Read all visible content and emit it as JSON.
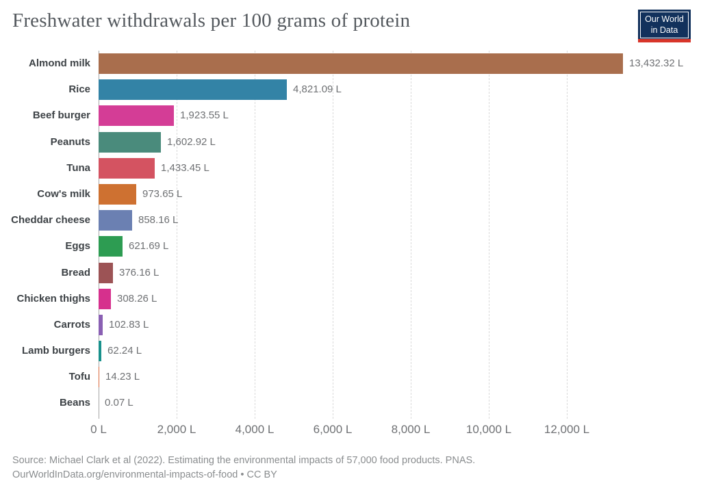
{
  "header": {
    "title": "Freshwater withdrawals per 100 grams of protein",
    "logo": {
      "line1": "Our World",
      "line2": "in Data",
      "bg_color": "#12315c",
      "accent_color": "#d8352a"
    }
  },
  "chart_data": {
    "type": "bar",
    "orientation": "horizontal",
    "title": "Freshwater withdrawals per 100 grams of protein",
    "unit": "L",
    "categories": [
      "Almond milk",
      "Rice",
      "Beef burger",
      "Peanuts",
      "Tuna",
      "Cow's milk",
      "Cheddar cheese",
      "Eggs",
      "Bread",
      "Chicken thighs",
      "Carrots",
      "Lamb burgers",
      "Tofu",
      "Beans"
    ],
    "values": [
      13432.32,
      4821.09,
      1923.55,
      1602.92,
      1433.45,
      973.65,
      858.16,
      621.69,
      376.16,
      308.26,
      102.83,
      62.24,
      14.23,
      0.07
    ],
    "value_labels": [
      "13,432.32 L",
      "4,821.09 L",
      "1,923.55 L",
      "1,602.92 L",
      "1,433.45 L",
      "973.65 L",
      "858.16 L",
      "621.69 L",
      "376.16 L",
      "308.26 L",
      "102.83 L",
      "62.24 L",
      "14.23 L",
      "0.07 L"
    ],
    "colors": [
      "#a96e4d",
      "#3383a6",
      "#d43d96",
      "#4a8b7c",
      "#d45361",
      "#ce7131",
      "#6b80b2",
      "#2d9c52",
      "#9c5355",
      "#d6308d",
      "#8a60b3",
      "#19918c",
      "#d9673b",
      "#cccccc"
    ],
    "xlabel": "",
    "ylabel": "",
    "xlim": [
      0,
      14380
    ],
    "grid": true,
    "x_ticks": [
      {
        "label": "0 L",
        "value": 0
      },
      {
        "label": "2,000 L",
        "value": 2000
      },
      {
        "label": "4,000 L",
        "value": 4000
      },
      {
        "label": "6,000 L",
        "value": 6000
      },
      {
        "label": "8,000 L",
        "value": 8000
      },
      {
        "label": "10,000 L",
        "value": 10000
      },
      {
        "label": "12,000 L",
        "value": 12000
      }
    ]
  },
  "footer": {
    "line1": "Source: Michael Clark et al (2022). Estimating the environmental impacts of 57,000 food products. PNAS.",
    "line2": "OurWorldInData.org/environmental-impacts-of-food • CC BY"
  }
}
